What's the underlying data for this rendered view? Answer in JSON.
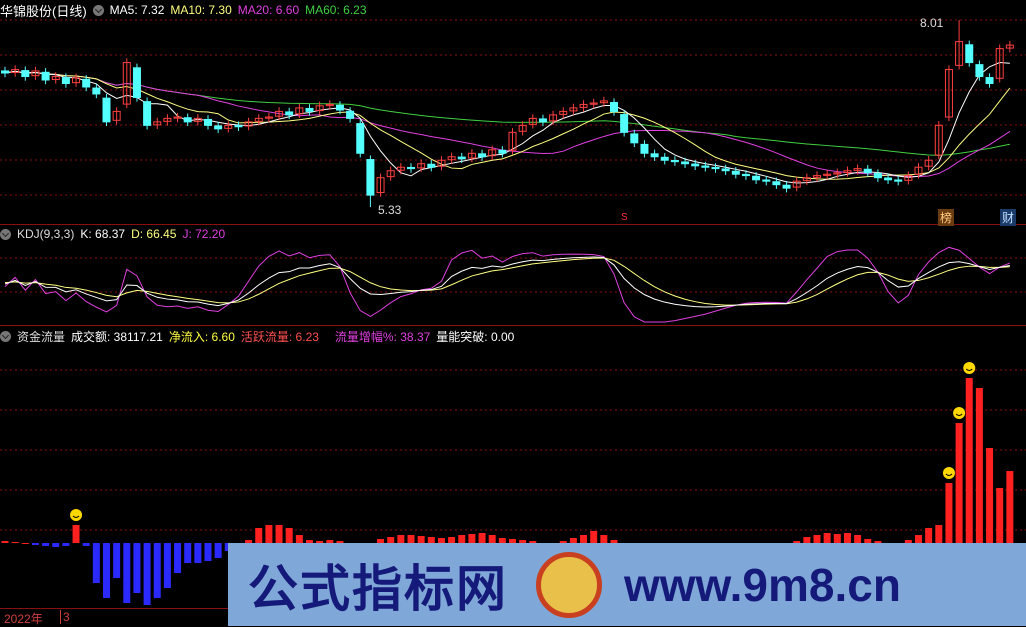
{
  "price_panel": {
    "title": "华锦股份(日线)",
    "ma5": "MA5: 7.32",
    "ma10": "MA10: 7.30",
    "ma20": "MA20: 6.60",
    "ma60": "MA60: 6.23",
    "high_label": "8.01",
    "low_label": "5.33",
    "tag_bang": "榜",
    "tag_cai": "财",
    "marker_s": "S"
  },
  "kdj_panel": {
    "title": "KDJ(9,3,3)",
    "k": "K: 68.37",
    "d": "D: 66.45",
    "j": "J: 72.20"
  },
  "flow_panel": {
    "title": "资金流量",
    "volume": "成交额: 38117.21",
    "net_inflow": "净流入: 6.60",
    "active_flow": "活跃流量: 6.23",
    "flow_growth": "流量增幅%: 38.37",
    "breakout": "量能突破: 0.00"
  },
  "time_axis": {
    "year": "2022年",
    "month": "3"
  },
  "watermark": {
    "text": "公式指标网",
    "url": "www.9m8.cn"
  },
  "colors": {
    "up": "#ff4040",
    "down": "#54ffff",
    "ma5": "#ffffff",
    "ma10": "#ffff80",
    "ma20": "#e040e0",
    "ma60": "#40d040",
    "flow_up": "#ff2020",
    "flow_down": "#2a2aff",
    "grid": "#8a1010"
  },
  "chart_data": {
    "type": "candlestick",
    "closes": [
      7.25,
      7.3,
      7.2,
      7.28,
      7.15,
      7.2,
      7.1,
      7.18,
      7.05,
      6.95,
      6.55,
      6.7,
      7.4,
      6.9,
      6.5,
      6.55,
      6.6,
      6.62,
      6.55,
      6.6,
      6.5,
      6.45,
      6.5,
      6.48,
      6.55,
      6.6,
      6.62,
      6.7,
      6.65,
      6.75,
      6.7,
      6.78,
      6.8,
      6.72,
      6.6,
      6.1,
      5.5,
      5.75,
      5.85,
      5.9,
      5.88,
      5.95,
      5.9,
      6.0,
      6.05,
      6.02,
      6.1,
      6.05,
      6.15,
      6.1,
      6.4,
      6.5,
      6.6,
      6.55,
      6.65,
      6.7,
      6.75,
      6.8,
      6.82,
      6.85,
      6.7,
      6.4,
      6.25,
      6.1,
      6.05,
      6.0,
      5.98,
      5.95,
      5.92,
      5.9,
      5.88,
      5.85,
      5.8,
      5.78,
      5.72,
      5.7,
      5.65,
      5.6,
      5.7,
      5.75,
      5.78,
      5.8,
      5.82,
      5.85,
      5.88,
      5.82,
      5.75,
      5.72,
      5.7,
      5.78,
      5.9,
      6.0,
      6.5,
      7.3,
      7.7,
      7.4,
      7.2,
      7.1,
      7.6,
      7.65
    ],
    "flow": [
      2,
      1,
      0,
      -2,
      -3,
      -4,
      -3,
      18,
      -3,
      -40,
      -55,
      -35,
      -60,
      -50,
      -62,
      -55,
      -45,
      -30,
      -20,
      -20,
      -18,
      -15,
      -8,
      -3,
      3,
      15,
      18,
      18,
      15,
      8,
      3,
      2,
      3,
      2,
      -3,
      -4,
      -2,
      4,
      6,
      8,
      8,
      7,
      6,
      5,
      6,
      8,
      9,
      10,
      8,
      5,
      4,
      3,
      2,
      -2,
      -3,
      2,
      5,
      8,
      12,
      8,
      3,
      -2,
      -2,
      -2,
      -2,
      -2,
      -2,
      -2,
      -2,
      -2,
      -2,
      -2,
      -2,
      -2,
      -2,
      -2,
      -2,
      -2,
      2,
      6,
      8,
      10,
      9,
      10,
      8,
      4,
      2,
      -2,
      -2,
      3,
      8,
      15,
      18,
      60,
      120,
      165,
      155,
      95,
      55,
      72
    ],
    "smiley_at": [
      7,
      93,
      94,
      95
    ]
  }
}
